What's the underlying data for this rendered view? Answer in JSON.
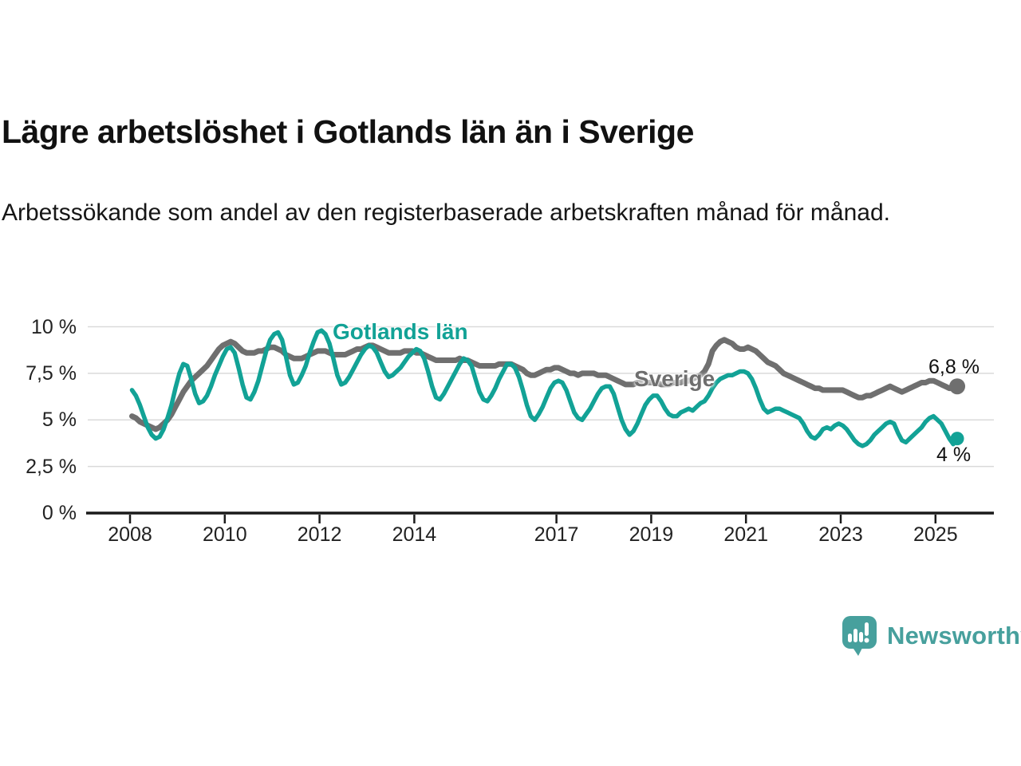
{
  "header": {
    "title": "Lägre arbetslöshet i Gotlands län än i Sverige",
    "subtitle": "Arbetssökande som andel av den registerbaserade arbetskraften månad för månad."
  },
  "chart": {
    "series_labels": {
      "gotland": "Gotlands län",
      "sverige": "Sverige"
    },
    "end_labels": {
      "gotland": "4 %",
      "sverige": "6,8 %"
    },
    "colors": {
      "gotland": "#12a296",
      "sverige": "#6f6f6f",
      "gridline": "#dadada",
      "axis": "#1a1a1a"
    }
  },
  "chart_data": {
    "type": "line",
    "title": "Lägre arbetslöshet i Gotlands län än i Sverige",
    "subtitle": "Arbetssökande som andel av den registerbaserade arbetskraften månad för månad.",
    "x_unit": "month",
    "x_start": 2008.042,
    "x_range": [
      2007.1,
      2026.25
    ],
    "ylim": [
      0,
      10.8
    ],
    "grid": "horizontal",
    "legend_position": "inline-labels",
    "y_ticks": [
      {
        "label": "10 %",
        "value": 10
      },
      {
        "label": "7,5 %",
        "value": 7.5
      },
      {
        "label": "5 %",
        "value": 5
      },
      {
        "label": "2,5 %",
        "value": 2.5
      },
      {
        "label": "0 %",
        "value": 0
      }
    ],
    "x_ticks": [
      {
        "label": "2008",
        "value": 2008
      },
      {
        "label": "2010",
        "value": 2010
      },
      {
        "label": "2012",
        "value": 2012
      },
      {
        "label": "2014",
        "value": 2014
      },
      {
        "label": "2017",
        "value": 2017
      },
      {
        "label": "2019",
        "value": 2019
      },
      {
        "label": "2021",
        "value": 2021
      },
      {
        "label": "2023",
        "value": 2023
      },
      {
        "label": "2025",
        "value": 2025
      }
    ],
    "series": [
      {
        "key": "sverige",
        "name": "Sverige",
        "color": "#6f6f6f",
        "stroke_width": 7,
        "dot_radius": 10,
        "end_value_label": "6,8 %",
        "values": [
          5.2,
          5.1,
          4.9,
          4.8,
          4.7,
          4.6,
          4.5,
          4.6,
          4.8,
          5.0,
          5.3,
          5.7,
          6.1,
          6.5,
          6.8,
          7.1,
          7.3,
          7.5,
          7.7,
          7.9,
          8.2,
          8.5,
          8.8,
          9.0,
          9.1,
          9.2,
          9.1,
          8.9,
          8.7,
          8.6,
          8.6,
          8.6,
          8.7,
          8.7,
          8.8,
          8.9,
          8.9,
          8.8,
          8.7,
          8.5,
          8.4,
          8.3,
          8.3,
          8.3,
          8.4,
          8.5,
          8.6,
          8.7,
          8.7,
          8.7,
          8.6,
          8.5,
          8.5,
          8.5,
          8.5,
          8.6,
          8.7,
          8.8,
          8.8,
          8.9,
          9.0,
          9.0,
          8.9,
          8.8,
          8.7,
          8.6,
          8.6,
          8.6,
          8.6,
          8.7,
          8.7,
          8.7,
          8.6,
          8.6,
          8.5,
          8.4,
          8.3,
          8.2,
          8.2,
          8.2,
          8.2,
          8.2,
          8.2,
          8.3,
          8.2,
          8.2,
          8.1,
          8.0,
          7.9,
          7.9,
          7.9,
          7.9,
          7.9,
          8.0,
          8.0,
          8.0,
          8.0,
          7.9,
          7.8,
          7.7,
          7.5,
          7.4,
          7.4,
          7.5,
          7.6,
          7.7,
          7.7,
          7.8,
          7.8,
          7.7,
          7.6,
          7.5,
          7.5,
          7.4,
          7.5,
          7.5,
          7.5,
          7.5,
          7.4,
          7.4,
          7.4,
          7.3,
          7.2,
          7.1,
          7.0,
          6.9,
          6.9,
          6.9,
          7.0,
          7.0,
          7.0,
          7.0,
          7.0,
          7.0,
          6.9,
          6.9,
          6.9,
          7.0,
          7.0,
          7.0,
          7.1,
          7.1,
          7.2,
          7.3,
          7.4,
          7.6,
          8.0,
          8.7,
          9.0,
          9.2,
          9.3,
          9.2,
          9.1,
          8.9,
          8.8,
          8.8,
          8.9,
          8.8,
          8.7,
          8.5,
          8.3,
          8.1,
          8.0,
          7.9,
          7.7,
          7.5,
          7.4,
          7.3,
          7.2,
          7.1,
          7.0,
          6.9,
          6.8,
          6.7,
          6.7,
          6.6,
          6.6,
          6.6,
          6.6,
          6.6,
          6.6,
          6.5,
          6.4,
          6.3,
          6.2,
          6.2,
          6.3,
          6.3,
          6.4,
          6.5,
          6.6,
          6.7,
          6.8,
          6.7,
          6.6,
          6.5,
          6.6,
          6.7,
          6.8,
          6.9,
          7.0,
          7.0,
          7.1,
          7.1,
          7.0,
          6.9,
          6.8,
          6.7,
          6.7,
          6.8
        ]
      },
      {
        "key": "gotland",
        "name": "Gotlands län",
        "color": "#12a296",
        "stroke_width": 5.5,
        "dot_radius": 8.5,
        "end_value_label": "4 %",
        "values": [
          6.6,
          6.3,
          5.8,
          5.2,
          4.6,
          4.2,
          4.0,
          4.1,
          4.5,
          5.1,
          5.8,
          6.7,
          7.5,
          8.0,
          7.9,
          7.2,
          6.4,
          5.9,
          6.0,
          6.3,
          6.8,
          7.4,
          7.9,
          8.4,
          8.8,
          8.9,
          8.6,
          7.8,
          6.9,
          6.2,
          6.1,
          6.5,
          7.1,
          7.9,
          8.7,
          9.3,
          9.6,
          9.7,
          9.3,
          8.4,
          7.4,
          6.9,
          7.0,
          7.4,
          7.9,
          8.6,
          9.2,
          9.7,
          9.8,
          9.6,
          9.1,
          8.3,
          7.4,
          6.9,
          7.0,
          7.3,
          7.7,
          8.1,
          8.5,
          8.8,
          9.0,
          8.9,
          8.6,
          8.1,
          7.6,
          7.3,
          7.4,
          7.6,
          7.8,
          8.1,
          8.4,
          8.6,
          8.8,
          8.7,
          8.3,
          7.6,
          6.8,
          6.2,
          6.1,
          6.4,
          6.8,
          7.2,
          7.6,
          8.0,
          8.3,
          8.2,
          7.9,
          7.2,
          6.5,
          6.1,
          6.0,
          6.3,
          6.7,
          7.2,
          7.6,
          8.0,
          8.0,
          7.8,
          7.3,
          6.6,
          5.8,
          5.2,
          5.0,
          5.3,
          5.7,
          6.2,
          6.7,
          7.0,
          7.1,
          7.0,
          6.6,
          6.0,
          5.4,
          5.1,
          5.0,
          5.3,
          5.6,
          6.0,
          6.4,
          6.7,
          6.8,
          6.8,
          6.4,
          5.7,
          5.0,
          4.5,
          4.2,
          4.4,
          4.8,
          5.3,
          5.8,
          6.1,
          6.3,
          6.3,
          6.0,
          5.6,
          5.3,
          5.2,
          5.2,
          5.4,
          5.5,
          5.6,
          5.5,
          5.7,
          5.9,
          6.0,
          6.3,
          6.7,
          7.0,
          7.2,
          7.3,
          7.4,
          7.4,
          7.5,
          7.6,
          7.6,
          7.5,
          7.2,
          6.7,
          6.1,
          5.6,
          5.4,
          5.5,
          5.6,
          5.6,
          5.5,
          5.4,
          5.3,
          5.2,
          5.1,
          4.8,
          4.4,
          4.1,
          4.0,
          4.2,
          4.5,
          4.6,
          4.5,
          4.7,
          4.8,
          4.7,
          4.5,
          4.2,
          3.9,
          3.7,
          3.6,
          3.7,
          3.9,
          4.2,
          4.4,
          4.6,
          4.8,
          4.9,
          4.8,
          4.3,
          3.9,
          3.8,
          4.0,
          4.2,
          4.4,
          4.6,
          4.9,
          5.1,
          5.2,
          5.0,
          4.8,
          4.4,
          4.0,
          3.7,
          4.0
        ]
      }
    ]
  },
  "footer": {
    "brand": "Newsworthy"
  }
}
